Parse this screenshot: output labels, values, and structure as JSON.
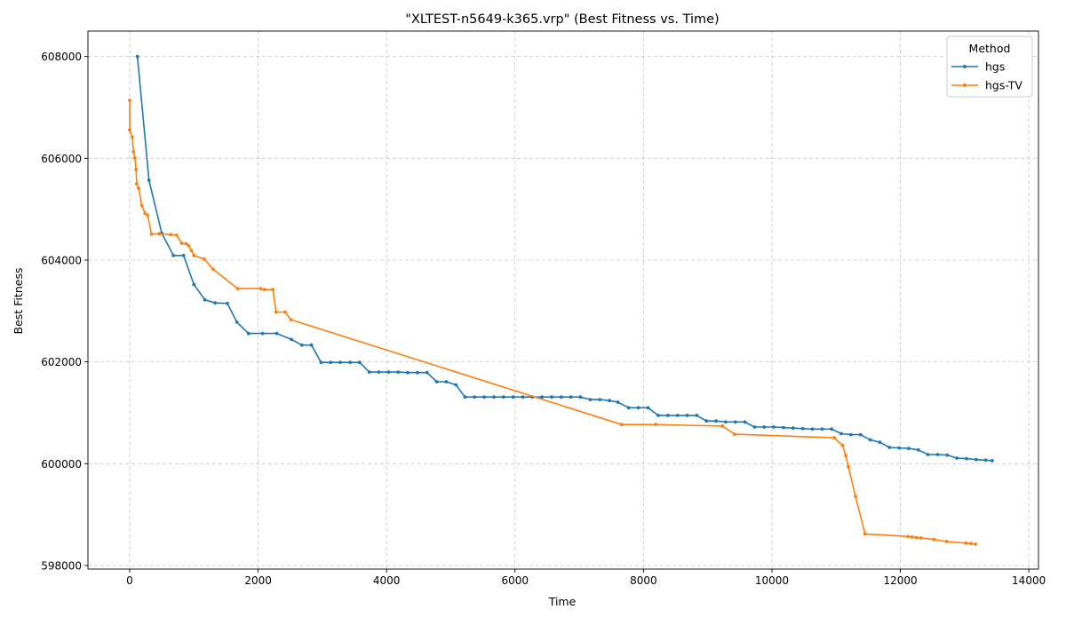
{
  "chart_data": {
    "type": "line",
    "title": "\"XLTEST-n5649-k365.vrp\" (Best Fitness vs. Time)",
    "xlabel": "Time",
    "ylabel": "Best Fitness",
    "xlim": [
      -650,
      14150
    ],
    "ylim": [
      597930,
      608500
    ],
    "x_ticks": [
      0,
      2000,
      4000,
      6000,
      8000,
      10000,
      12000,
      14000
    ],
    "x_tick_labels": [
      "0",
      "2000",
      "4000",
      "6000",
      "8000",
      "10000",
      "12000",
      "14000"
    ],
    "y_ticks": [
      598000,
      600000,
      602000,
      604000,
      606000,
      608000
    ],
    "y_tick_labels": [
      "598000",
      "600000",
      "602000",
      "604000",
      "606000",
      "608000"
    ],
    "grid": true,
    "legend": {
      "title": "Method",
      "placement": "top-right"
    },
    "series": [
      {
        "name": "hgs",
        "color": "#1f77b4",
        "points": [
          [
            120,
            608000
          ],
          [
            300,
            605570
          ],
          [
            500,
            604530
          ],
          [
            680,
            604090
          ],
          [
            840,
            604090
          ],
          [
            1000,
            603520
          ],
          [
            1170,
            603220
          ],
          [
            1330,
            603160
          ],
          [
            1520,
            603150
          ],
          [
            1670,
            602780
          ],
          [
            1850,
            602560
          ],
          [
            2070,
            602560
          ],
          [
            2290,
            602560
          ],
          [
            2520,
            602440
          ],
          [
            2680,
            602330
          ],
          [
            2830,
            602330
          ],
          [
            2980,
            601990
          ],
          [
            3130,
            601990
          ],
          [
            3280,
            601990
          ],
          [
            3430,
            601990
          ],
          [
            3580,
            601990
          ],
          [
            3730,
            601800
          ],
          [
            3880,
            601800
          ],
          [
            4030,
            601800
          ],
          [
            4180,
            601800
          ],
          [
            4330,
            601790
          ],
          [
            4480,
            601790
          ],
          [
            4630,
            601790
          ],
          [
            4780,
            601610
          ],
          [
            4930,
            601610
          ],
          [
            5080,
            601550
          ],
          [
            5220,
            601310
          ],
          [
            5370,
            601310
          ],
          [
            5520,
            601310
          ],
          [
            5670,
            601310
          ],
          [
            5820,
            601310
          ],
          [
            5970,
            601310
          ],
          [
            6120,
            601310
          ],
          [
            6270,
            601310
          ],
          [
            6420,
            601310
          ],
          [
            6570,
            601310
          ],
          [
            6720,
            601310
          ],
          [
            6870,
            601310
          ],
          [
            7020,
            601310
          ],
          [
            7170,
            601260
          ],
          [
            7320,
            601260
          ],
          [
            7470,
            601240
          ],
          [
            7600,
            601210
          ],
          [
            7770,
            601100
          ],
          [
            7920,
            601100
          ],
          [
            8070,
            601100
          ],
          [
            8230,
            600950
          ],
          [
            8380,
            600950
          ],
          [
            8530,
            600950
          ],
          [
            8680,
            600950
          ],
          [
            8830,
            600950
          ],
          [
            8980,
            600840
          ],
          [
            9130,
            600840
          ],
          [
            9280,
            600820
          ],
          [
            9430,
            600820
          ],
          [
            9580,
            600820
          ],
          [
            9730,
            600720
          ],
          [
            9880,
            600720
          ],
          [
            10030,
            600720
          ],
          [
            10180,
            600710
          ],
          [
            10330,
            600700
          ],
          [
            10480,
            600690
          ],
          [
            10630,
            600680
          ],
          [
            10780,
            600680
          ],
          [
            10930,
            600680
          ],
          [
            11080,
            600590
          ],
          [
            11230,
            600570
          ],
          [
            11380,
            600570
          ],
          [
            11530,
            600470
          ],
          [
            11680,
            600420
          ],
          [
            11830,
            600320
          ],
          [
            11980,
            600310
          ],
          [
            12130,
            600300
          ],
          [
            12280,
            600270
          ],
          [
            12430,
            600180
          ],
          [
            12580,
            600180
          ],
          [
            12730,
            600170
          ],
          [
            12880,
            600110
          ],
          [
            13030,
            600100
          ],
          [
            13180,
            600080
          ],
          [
            13330,
            600070
          ],
          [
            13430,
            600060
          ]
        ]
      },
      {
        "name": "hgs-TV",
        "color": "#ff7f0e",
        "points": [
          [
            0,
            607140
          ],
          [
            0,
            606560
          ],
          [
            40,
            606420
          ],
          [
            60,
            606130
          ],
          [
            80,
            606010
          ],
          [
            100,
            605780
          ],
          [
            110,
            605500
          ],
          [
            140,
            605410
          ],
          [
            190,
            605070
          ],
          [
            240,
            604920
          ],
          [
            280,
            604880
          ],
          [
            340,
            604510
          ],
          [
            460,
            604520
          ],
          [
            640,
            604500
          ],
          [
            730,
            604490
          ],
          [
            810,
            604330
          ],
          [
            880,
            604320
          ],
          [
            920,
            604280
          ],
          [
            960,
            604190
          ],
          [
            1000,
            604090
          ],
          [
            1160,
            604020
          ],
          [
            1300,
            603820
          ],
          [
            1680,
            603440
          ],
          [
            2040,
            603440
          ],
          [
            2100,
            603420
          ],
          [
            2230,
            603420
          ],
          [
            2280,
            602980
          ],
          [
            2420,
            602980
          ],
          [
            2510,
            602830
          ],
          [
            7660,
            600770
          ],
          [
            8190,
            600770
          ],
          [
            9230,
            600740
          ],
          [
            9420,
            600580
          ],
          [
            10970,
            600510
          ],
          [
            11100,
            600360
          ],
          [
            11150,
            600160
          ],
          [
            11190,
            599940
          ],
          [
            11300,
            599360
          ],
          [
            11450,
            598620
          ],
          [
            12120,
            598570
          ],
          [
            12180,
            598560
          ],
          [
            12250,
            598550
          ],
          [
            12320,
            598540
          ],
          [
            12520,
            598510
          ],
          [
            12720,
            598470
          ],
          [
            13020,
            598440
          ],
          [
            13100,
            598430
          ],
          [
            13170,
            598420
          ]
        ]
      }
    ]
  }
}
